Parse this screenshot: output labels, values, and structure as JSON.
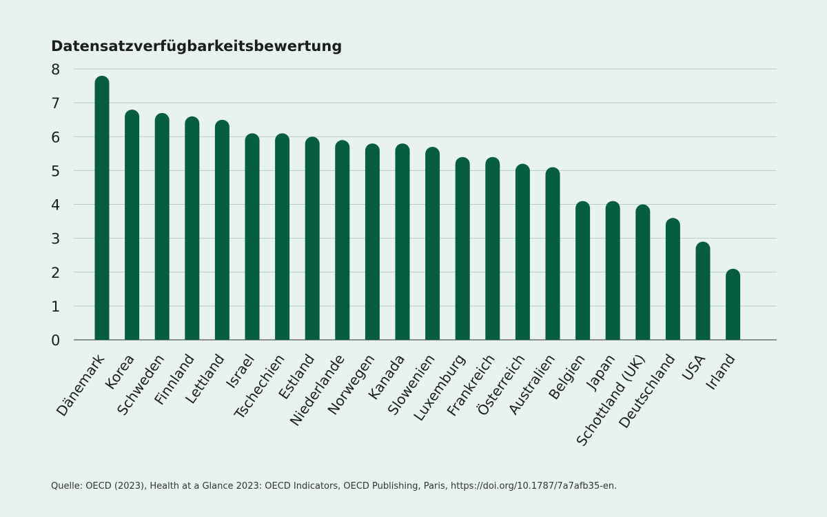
{
  "source": "Quelle: OECD (2023), Health at a Glance 2023: OECD Indicators, OECD Publishing, Paris, https://doi.org/10.1787/7a7afb35-en.",
  "colors": {
    "background": "#e8f3ef",
    "bar": "#065e3e",
    "grid": "#b9ccc5",
    "axis": "#555555",
    "text": "#1d1d1d"
  },
  "chart_data": {
    "type": "bar",
    "title": "Datensatzverfügbarkeitsbewertung",
    "xlabel": "",
    "ylabel": "",
    "ylim": [
      0,
      8
    ],
    "y_ticks": [
      0,
      1,
      2,
      3,
      4,
      5,
      6,
      7,
      8
    ],
    "grid": true,
    "categories": [
      "Dänemark",
      "Korea",
      "Schweden",
      "Finnland",
      "Lettland",
      "Israel",
      "Tschechien",
      "Estland",
      "Niederlande",
      "Norwegen",
      "Kanada",
      "Slowenien",
      "Luxemburg",
      "Frankreich",
      "Österreich",
      "Australien",
      "Belgien",
      "Japan",
      "Schottland (UK)",
      "Deutschland",
      "USA",
      "Irland"
    ],
    "values": [
      7.8,
      6.8,
      6.7,
      6.6,
      6.5,
      6.1,
      6.1,
      6.0,
      5.9,
      5.8,
      5.8,
      5.7,
      5.4,
      5.4,
      5.2,
      5.1,
      4.1,
      4.1,
      4.0,
      3.6,
      2.9,
      2.1
    ]
  }
}
